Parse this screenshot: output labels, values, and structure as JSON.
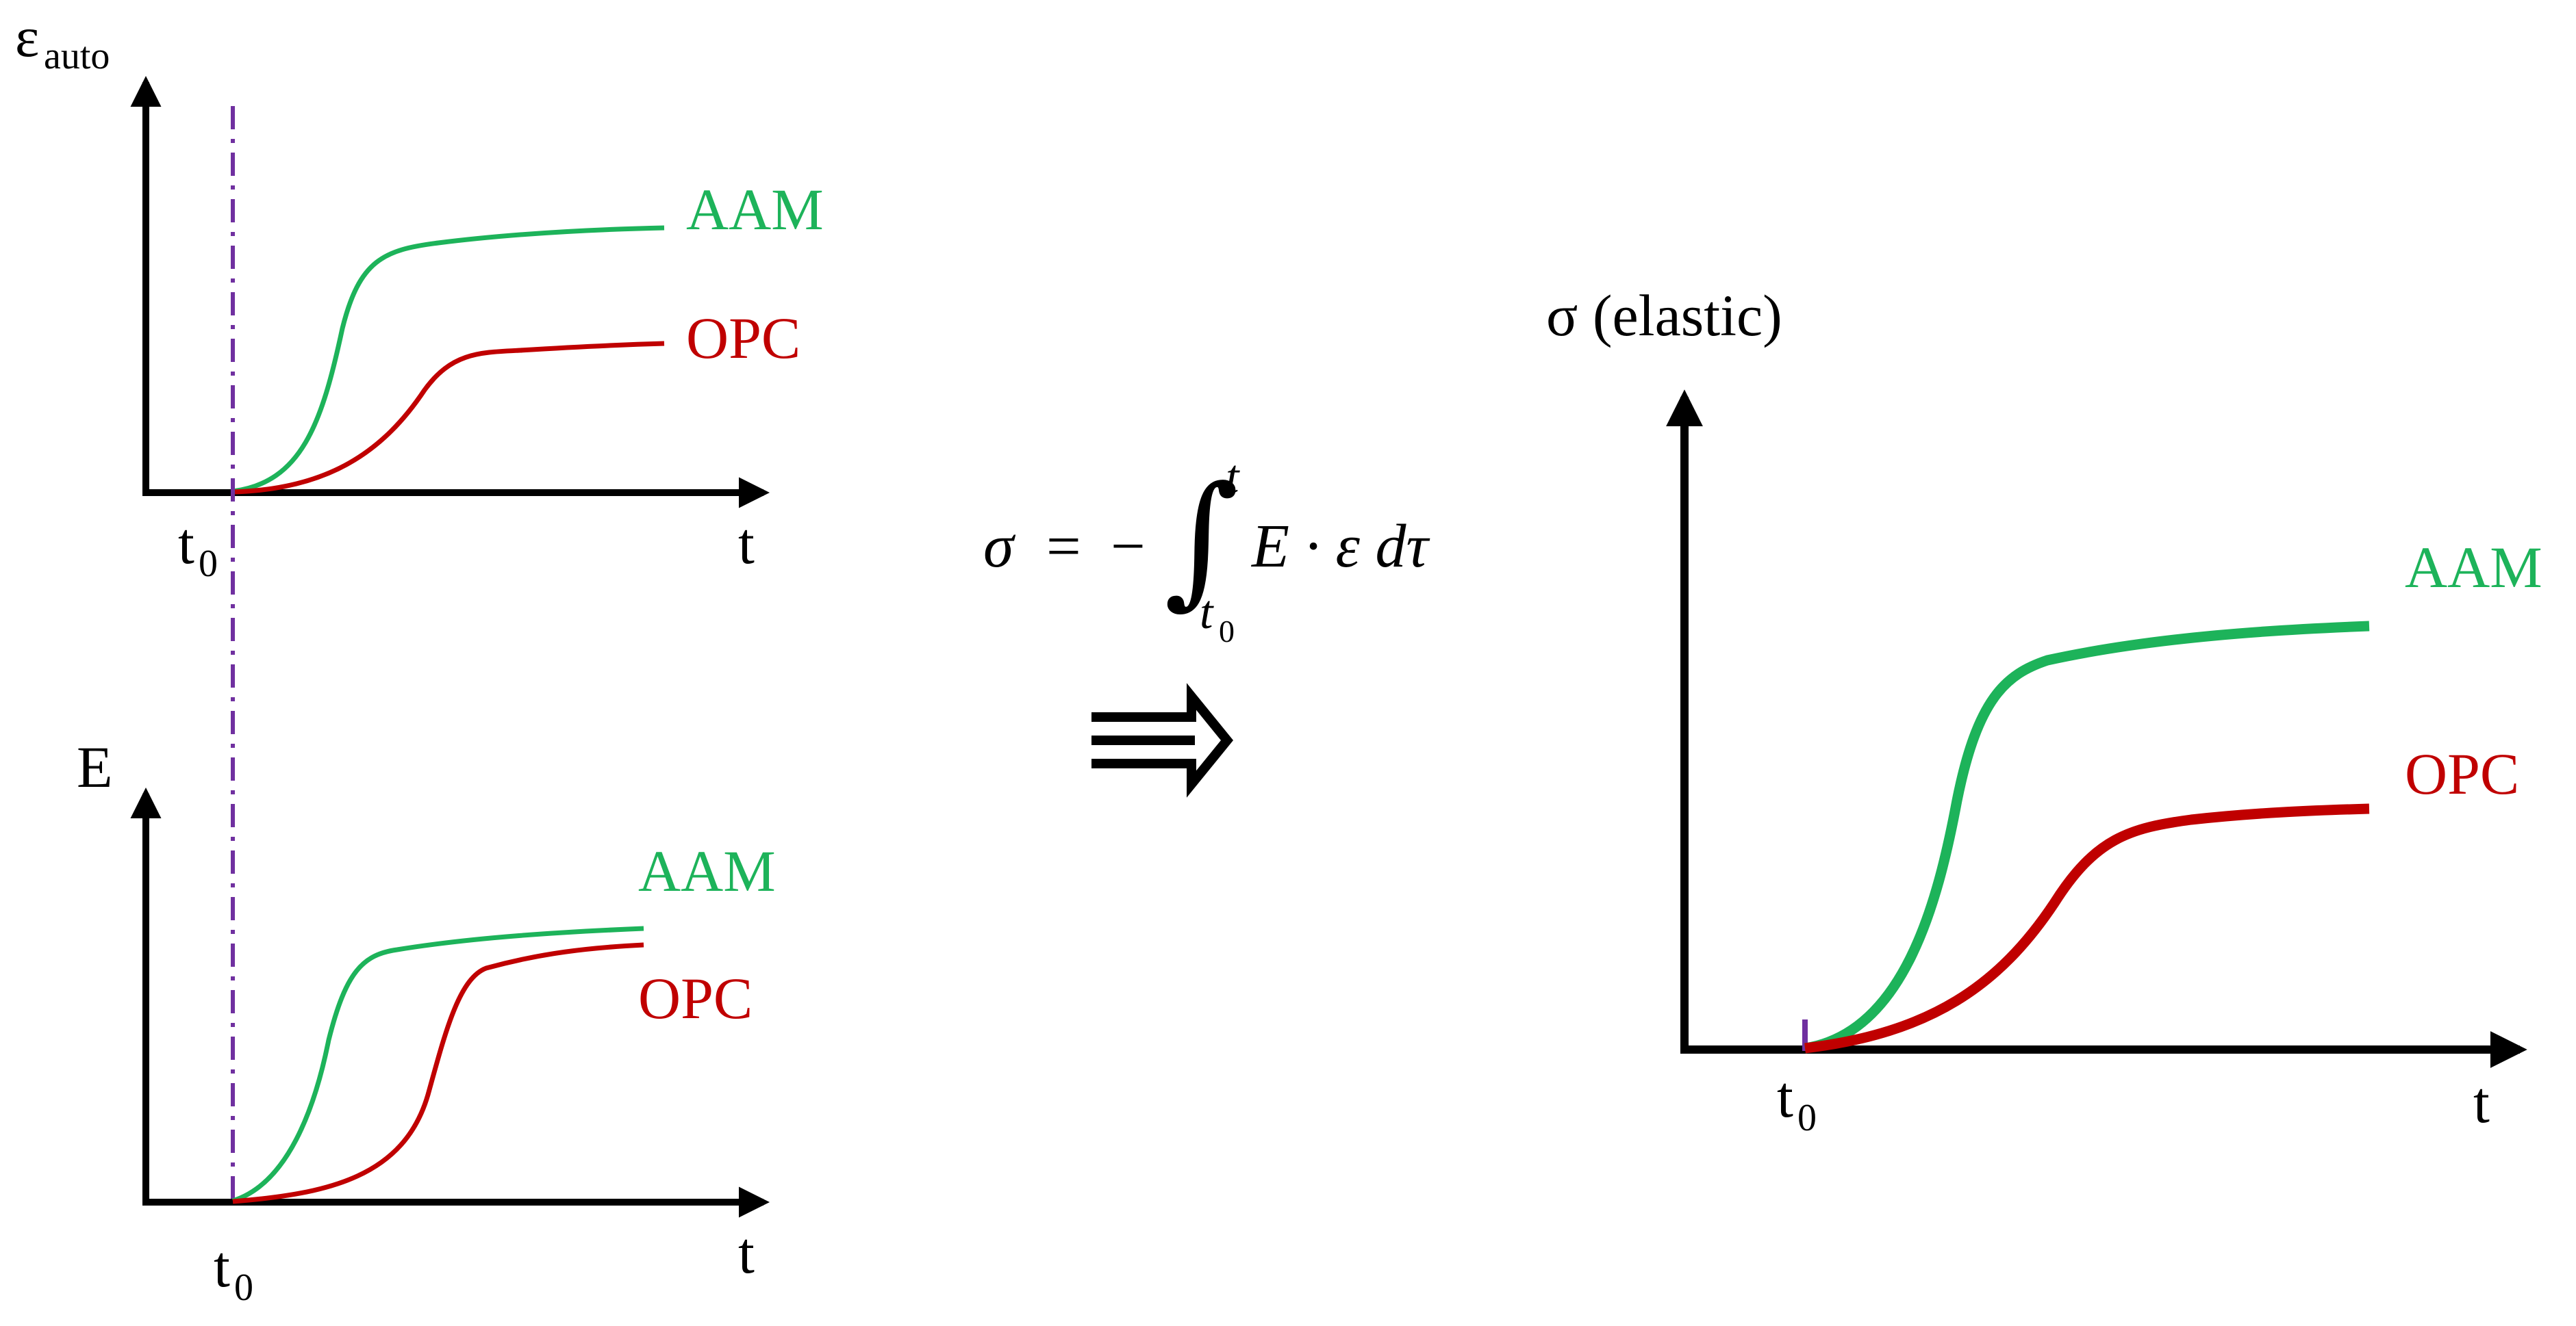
{
  "colors": {
    "aam": "#1db35a",
    "opc": "#c00000",
    "axis": "#000000",
    "t0_line": "#7030a0"
  },
  "panel_auto": {
    "y_symbol": "ε",
    "y_subscript": "auto",
    "x_label": "t",
    "t0_main": "t",
    "t0_sub": "0",
    "series": [
      "AAM",
      "OPC"
    ]
  },
  "panel_E": {
    "y_label": "E",
    "x_label": "t",
    "t0_main": "t",
    "t0_sub": "0",
    "series": [
      "AAM",
      "OPC"
    ]
  },
  "equation": {
    "lhs": "σ",
    "eq": "=",
    "minus": "−",
    "integral": "∫",
    "upper": "t",
    "lower_main": "t",
    "lower_sub": "0",
    "integrand": "E · ε dτ"
  },
  "implies_arrow": "⇒",
  "panel_sigma": {
    "y_label": "σ (elastic)",
    "x_label": "t",
    "t0_main": "t",
    "t0_sub": "0",
    "series": [
      "AAM",
      "OPC"
    ]
  }
}
